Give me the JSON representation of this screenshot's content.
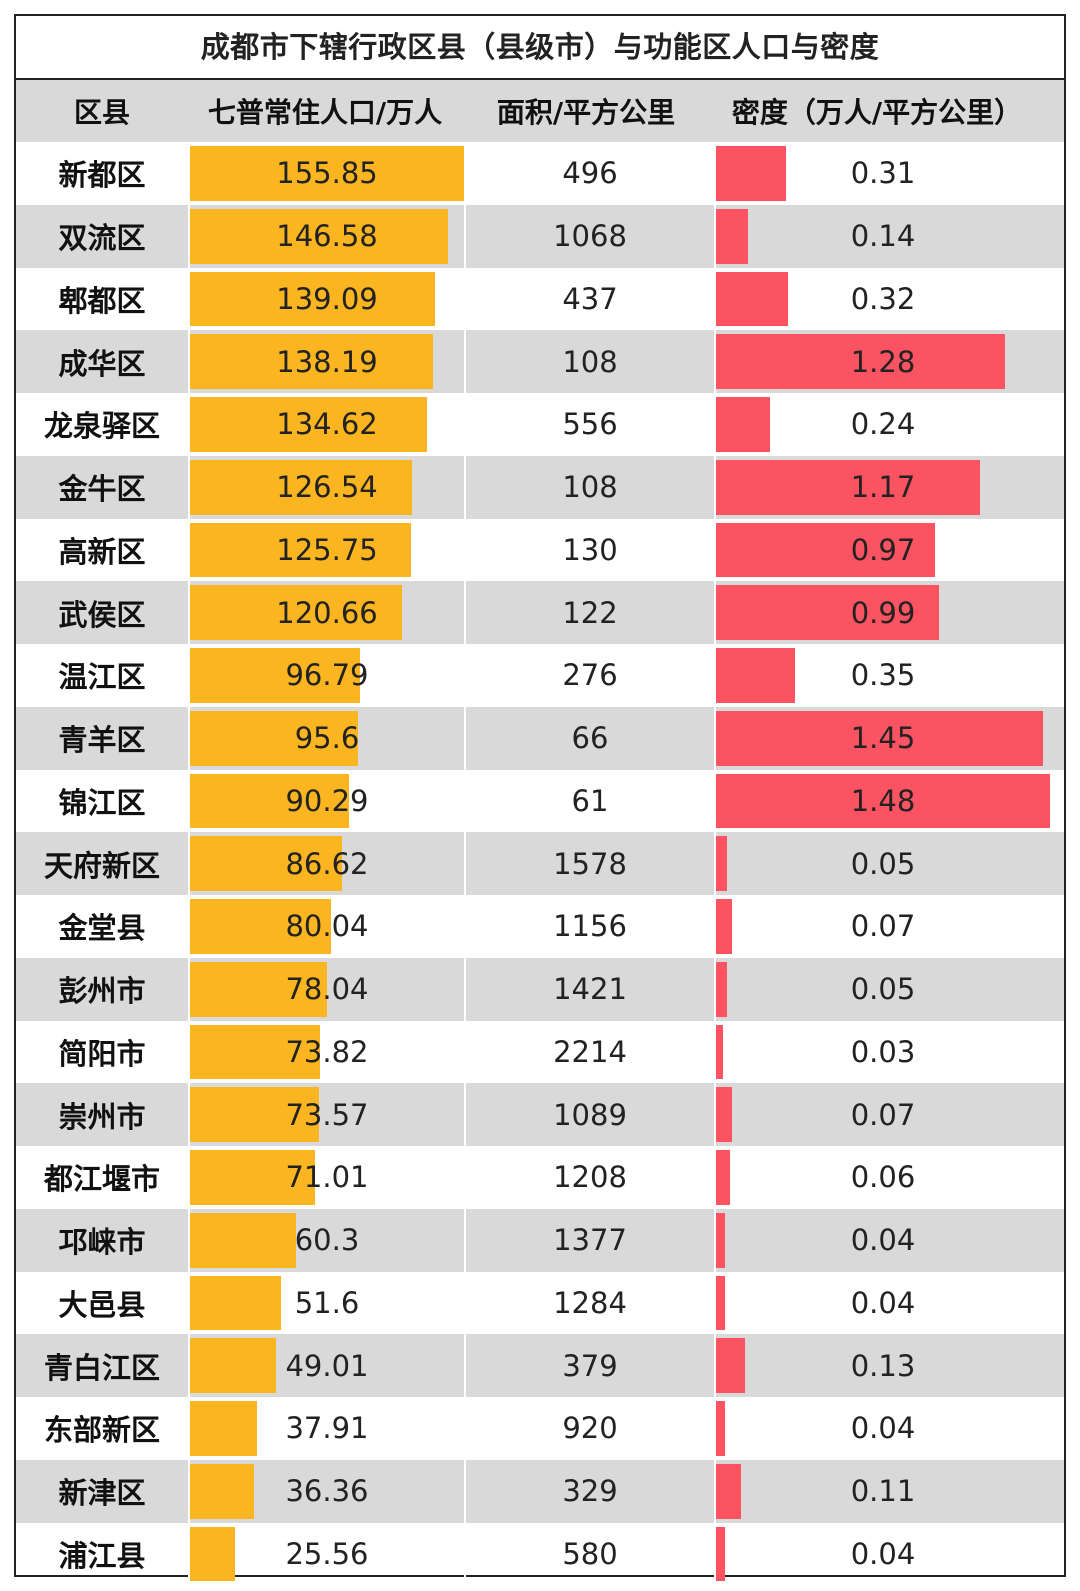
{
  "title": "成都市下辖行政区县（县级市）与功能区人口与密度",
  "headers": {
    "district": "区县",
    "population": "七普常住人口/万人",
    "area": "面积/平方公里",
    "density": "密度（万人/平方公里）"
  },
  "colors": {
    "population_bar": "#fbb521",
    "density_bar": "#fb5361",
    "alt_row": "#d9d9d9"
  },
  "rows": [
    {
      "name": "新都区",
      "population": "155.85",
      "area": "496",
      "density": "0.31"
    },
    {
      "name": "双流区",
      "population": "146.58",
      "area": "1068",
      "density": "0.14"
    },
    {
      "name": "郫都区",
      "population": "139.09",
      "area": "437",
      "density": "0.32"
    },
    {
      "name": "成华区",
      "population": "138.19",
      "area": "108",
      "density": "1.28"
    },
    {
      "name": "龙泉驿区",
      "population": "134.62",
      "area": "556",
      "density": "0.24"
    },
    {
      "name": "金牛区",
      "population": "126.54",
      "area": "108",
      "density": "1.17"
    },
    {
      "name": "高新区",
      "population": "125.75",
      "area": "130",
      "density": "0.97"
    },
    {
      "name": "武侯区",
      "population": "120.66",
      "area": "122",
      "density": "0.99"
    },
    {
      "name": "温江区",
      "population": "96.79",
      "area": "276",
      "density": "0.35"
    },
    {
      "name": "青羊区",
      "population": "95.6",
      "area": "66",
      "density": "1.45"
    },
    {
      "name": "锦江区",
      "population": "90.29",
      "area": "61",
      "density": "1.48"
    },
    {
      "name": "天府新区",
      "population": "86.62",
      "area": "1578",
      "density": "0.05"
    },
    {
      "name": "金堂县",
      "population": "80.04",
      "area": "1156",
      "density": "0.07"
    },
    {
      "name": "彭州市",
      "population": "78.04",
      "area": "1421",
      "density": "0.05"
    },
    {
      "name": "简阳市",
      "population": "73.82",
      "area": "2214",
      "density": "0.03"
    },
    {
      "name": "崇州市",
      "population": "73.57",
      "area": "1089",
      "density": "0.07"
    },
    {
      "name": "都江堰市",
      "population": "71.01",
      "area": "1208",
      "density": "0.06"
    },
    {
      "name": "邛崃市",
      "population": "60.3",
      "area": "1377",
      "density": "0.04"
    },
    {
      "name": "大邑县",
      "population": "51.6",
      "area": "1284",
      "density": "0.04"
    },
    {
      "name": "青白江区",
      "population": "49.01",
      "area": "379",
      "density": "0.13"
    },
    {
      "name": "东部新区",
      "population": "37.91",
      "area": "920",
      "density": "0.04"
    },
    {
      "name": "新津区",
      "population": "36.36",
      "area": "329",
      "density": "0.11"
    },
    {
      "name": "浦江县",
      "population": "25.56",
      "area": "580",
      "density": "0.04"
    }
  ]
}
